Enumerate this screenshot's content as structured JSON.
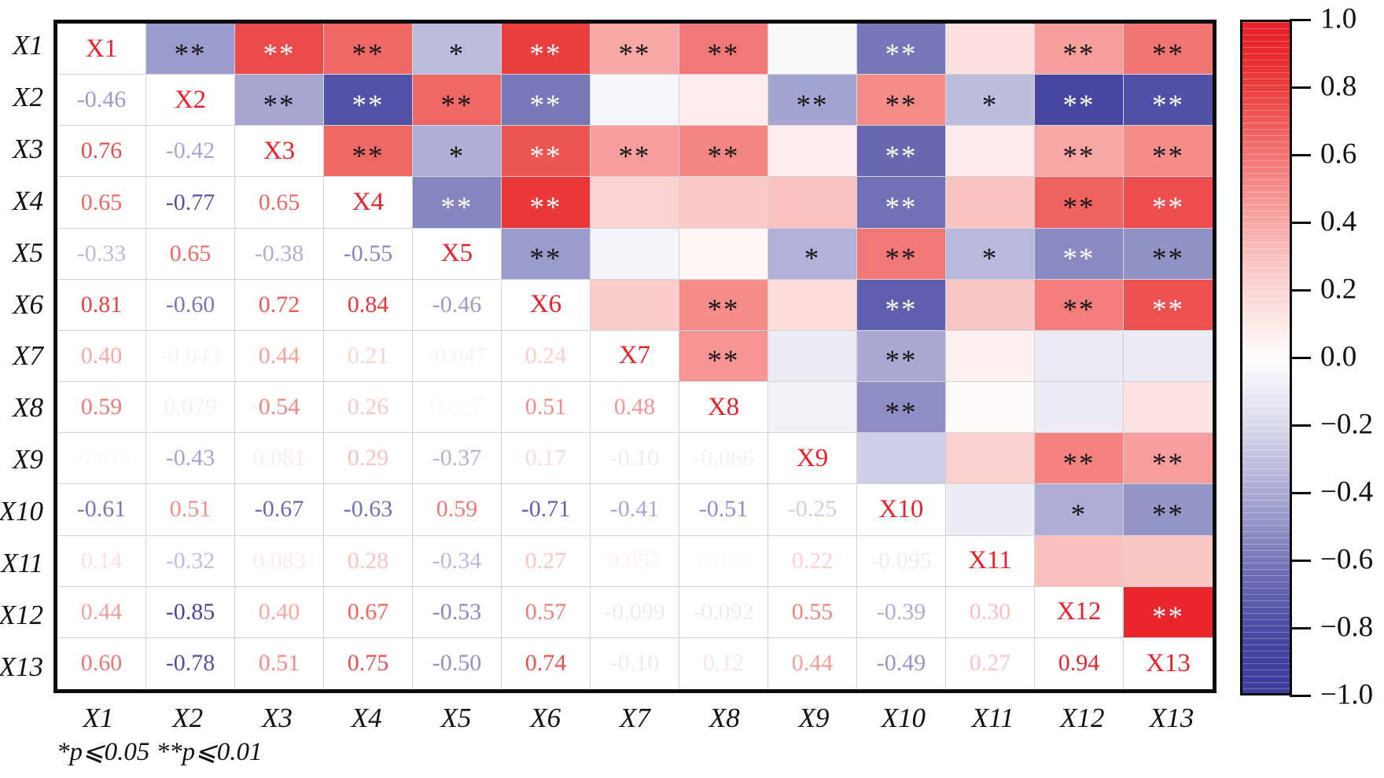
{
  "chart_data": {
    "type": "heatmap",
    "title": "",
    "variables": [
      "X1",
      "X2",
      "X3",
      "X4",
      "X5",
      "X6",
      "X7",
      "X8",
      "X9",
      "X10",
      "X11",
      "X12",
      "X13"
    ],
    "rows": [
      {
        "label": "X1",
        "lower": [],
        "stars": [
          "**",
          "**",
          "**",
          "*",
          "**",
          "**",
          "**",
          "",
          "**",
          "",
          "**",
          "**"
        ]
      },
      {
        "label": "X2",
        "lower": [
          "-0.46"
        ],
        "stars": [
          "**",
          "**",
          "**",
          "**",
          "",
          "",
          "**",
          "**",
          "*",
          "**",
          "**"
        ]
      },
      {
        "label": "X3",
        "lower": [
          "0.76",
          "-0.42"
        ],
        "stars": [
          "**",
          "*",
          "**",
          "**",
          "**",
          "",
          "**",
          "",
          "**",
          "**"
        ]
      },
      {
        "label": "X4",
        "lower": [
          "0.65",
          "-0.77",
          "0.65"
        ],
        "stars": [
          "**",
          "**",
          "",
          "",
          "",
          "**",
          "",
          "**",
          "**"
        ]
      },
      {
        "label": "X5",
        "lower": [
          "-0.33",
          "0.65",
          "-0.38",
          "-0.55"
        ],
        "stars": [
          "**",
          "",
          "",
          "*",
          "**",
          "*",
          "**",
          "**"
        ]
      },
      {
        "label": "X6",
        "lower": [
          "0.81",
          "-0.60",
          "0.72",
          "0.84",
          "-0.46"
        ],
        "stars": [
          "",
          "**",
          "",
          "**",
          "",
          "**",
          "**"
        ]
      },
      {
        "label": "X7",
        "lower": [
          "0.40",
          "-0.043",
          "0.44",
          "0.21",
          "-0.047",
          "0.24"
        ],
        "stars": [
          "**",
          "",
          "**",
          "",
          "",
          ""
        ]
      },
      {
        "label": "X8",
        "lower": [
          "0.59",
          "0.079",
          "0.54",
          "0.26",
          "0.027",
          "0.51",
          "0.48"
        ],
        "stars": [
          "",
          "**",
          "",
          "",
          ""
        ]
      },
      {
        "label": "X9",
        "lower": [
          "-0.015",
          "-0.43",
          "0.081",
          "0.29",
          "-0.37",
          "0.17",
          "-0.10",
          "-0.066"
        ],
        "stars": [
          "",
          "",
          "**",
          "**"
        ]
      },
      {
        "label": "X10",
        "lower": [
          "-0.61",
          "0.51",
          "-0.67",
          "-0.63",
          "0.59",
          "-0.71",
          "-0.41",
          "-0.51",
          "-0.25"
        ],
        "stars": [
          "",
          "*",
          "**"
        ]
      },
      {
        "label": "X11",
        "lower": [
          "0.14",
          "-0.32",
          "0.083",
          "0.28",
          "-0.34",
          "0.27",
          "0.057",
          "0.004",
          "0.22",
          "-0.095"
        ],
        "stars": [
          "",
          ""
        ]
      },
      {
        "label": "X12",
        "lower": [
          "0.44",
          "-0.85",
          "0.40",
          "0.67",
          "-0.53",
          "0.57",
          "-0.099",
          "-0.092",
          "0.55",
          "-0.39",
          "0.30"
        ],
        "stars": [
          "**"
        ]
      },
      {
        "label": "X13",
        "lower": [
          "0.60",
          "-0.78",
          "0.51",
          "0.75",
          "-0.50",
          "0.74",
          "-0.10",
          "0.12",
          "0.44",
          "-0.49",
          "0.27",
          "0.94"
        ],
        "stars": []
      }
    ],
    "colorbar": {
      "ticks": [
        "1.0",
        "0.8",
        "0.6",
        "0.4",
        "0.2",
        "0.0",
        "−0.2",
        "−0.4",
        "−0.6",
        "−0.8",
        "−1.0"
      ],
      "vmax": 1.0,
      "vmin": -1.0
    },
    "footnote": "*p⩽0.05 **p⩽0.01",
    "legend_position": "right",
    "colors": {
      "diag_label": "#E8212A",
      "star_dark": "#151515",
      "star_light": "#FFFFFF",
      "frame": "#0B0B0B",
      "grid_line": "#D3D3DA",
      "stops": [
        [
          -1.0,
          "#3D3D9C"
        ],
        [
          -0.9,
          "#40409E"
        ],
        [
          -0.8,
          "#4C4CA5"
        ],
        [
          -0.7,
          "#6161AE"
        ],
        [
          -0.6,
          "#7878B9"
        ],
        [
          -0.5,
          "#9292C6"
        ],
        [
          -0.4,
          "#ABABD4"
        ],
        [
          -0.3,
          "#C2C2E0"
        ],
        [
          -0.2,
          "#D9D9EB"
        ],
        [
          -0.1,
          "#EBEBF4"
        ],
        [
          0.0,
          "#FFFCFC"
        ],
        [
          0.1,
          "#FDE8E7"
        ],
        [
          0.2,
          "#FBD5D3"
        ],
        [
          0.3,
          "#F9C0BE"
        ],
        [
          0.4,
          "#F7A8A6"
        ],
        [
          0.5,
          "#F48F8D"
        ],
        [
          0.6,
          "#F17573"
        ],
        [
          0.7,
          "#EF5B59"
        ],
        [
          0.8,
          "#EB4140"
        ],
        [
          0.9,
          "#E92A2C"
        ],
        [
          1.0,
          "#E8202A"
        ]
      ]
    },
    "star_white_pos": 0.7,
    "star_white_neg": -0.52
  }
}
